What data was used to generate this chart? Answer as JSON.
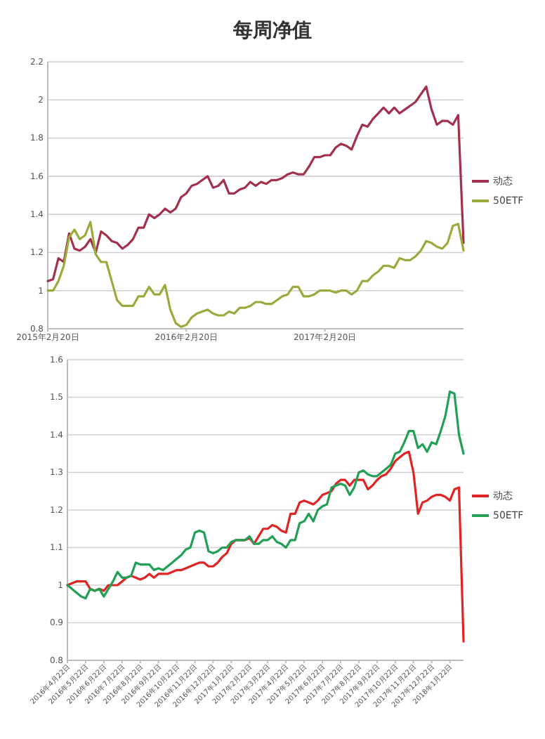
{
  "chart_data": [
    {
      "type": "line",
      "title": "每周净值",
      "categories": [
        "2015年2月20日",
        null,
        null,
        null,
        null,
        null,
        null,
        null,
        null,
        null,
        null,
        null,
        null,
        null,
        null,
        null,
        null,
        null,
        null,
        null,
        null,
        null,
        null,
        null,
        null,
        null,
        "2016年2月20日",
        null,
        null,
        null,
        null,
        null,
        null,
        null,
        null,
        null,
        null,
        null,
        null,
        null,
        null,
        null,
        null,
        null,
        null,
        null,
        null,
        null,
        null,
        null,
        null,
        null,
        "2017年2月20日",
        null,
        null,
        null,
        null,
        null,
        null,
        null,
        null,
        null,
        null,
        null,
        null,
        null,
        null,
        null,
        null,
        null,
        null,
        null,
        null,
        null,
        null,
        null,
        null,
        null,
        null
      ],
      "series": [
        {
          "name": "动态",
          "color": "#a3304c",
          "values": [
            1.05,
            1.06,
            1.17,
            1.15,
            1.3,
            1.22,
            1.21,
            1.23,
            1.27,
            1.2,
            1.31,
            1.29,
            1.26,
            1.25,
            1.22,
            1.24,
            1.27,
            1.33,
            1.33,
            1.4,
            1.38,
            1.4,
            1.43,
            1.41,
            1.43,
            1.49,
            1.51,
            1.55,
            1.56,
            1.58,
            1.6,
            1.54,
            1.55,
            1.58,
            1.51,
            1.51,
            1.53,
            1.54,
            1.57,
            1.55,
            1.57,
            1.56,
            1.58,
            1.58,
            1.59,
            1.61,
            1.62,
            1.61,
            1.61,
            1.65,
            1.7,
            1.7,
            1.71,
            1.71,
            1.75,
            1.77,
            1.76,
            1.74,
            1.81,
            1.87,
            1.86,
            1.9,
            1.93,
            1.96,
            1.93,
            1.96,
            1.93,
            1.95,
            1.97,
            1.99,
            2.03,
            2.07,
            1.95,
            1.87,
            1.89,
            1.89,
            1.87,
            1.92,
            1.25
          ]
        },
        {
          "name": "50ETF",
          "color": "#9aab3e",
          "values": [
            1.0,
            1.0,
            1.05,
            1.13,
            1.28,
            1.32,
            1.27,
            1.29,
            1.36,
            1.19,
            1.15,
            1.15,
            1.05,
            0.95,
            0.92,
            0.92,
            0.92,
            0.97,
            0.97,
            1.02,
            0.98,
            0.98,
            1.03,
            0.9,
            0.83,
            0.81,
            0.82,
            0.86,
            0.88,
            0.89,
            0.9,
            0.88,
            0.87,
            0.87,
            0.89,
            0.88,
            0.91,
            0.91,
            0.92,
            0.94,
            0.94,
            0.93,
            0.93,
            0.95,
            0.97,
            0.98,
            1.02,
            1.02,
            0.97,
            0.97,
            0.98,
            1.0,
            1.0,
            1.0,
            0.99,
            1.0,
            1.0,
            0.98,
            1.0,
            1.05,
            1.05,
            1.08,
            1.1,
            1.13,
            1.13,
            1.12,
            1.17,
            1.16,
            1.16,
            1.18,
            1.21,
            1.26,
            1.25,
            1.23,
            1.22,
            1.25,
            1.34,
            1.35,
            1.21
          ]
        }
      ],
      "ylim": [
        0.8,
        2.2
      ],
      "yticks": [
        0.8,
        1,
        1.2,
        1.4,
        1.6,
        1.8,
        2,
        2.2
      ],
      "grid": "y",
      "legend": "right"
    },
    {
      "type": "line",
      "categories": [
        "2016年4月22日",
        null,
        null,
        null,
        "2016年5月22日",
        null,
        null,
        null,
        "2016年6月22日",
        null,
        null,
        null,
        "2016年7月22日",
        null,
        null,
        null,
        "2016年8月22日",
        null,
        null,
        null,
        "2016年9月22日",
        null,
        null,
        null,
        "2016年10月22日",
        null,
        null,
        null,
        "2016年11月22日",
        null,
        null,
        null,
        "2016年12月22日",
        null,
        null,
        null,
        "2017年1月22日",
        null,
        null,
        null,
        "2017年2月22日",
        null,
        null,
        null,
        "2017年3月22日",
        null,
        null,
        null,
        "2017年4月22日",
        null,
        null,
        null,
        "2017年5月22日",
        null,
        null,
        null,
        "2017年6月22日",
        null,
        null,
        null,
        "2017年7月22日",
        null,
        null,
        null,
        "2017年8月22日",
        null,
        null,
        null,
        "2017年9月22日",
        null,
        null,
        null,
        "2017年10月22日",
        null,
        null,
        null,
        "2017年11月22日",
        null,
        null,
        null,
        "2017年12月22日",
        null,
        null,
        null,
        "2018年1月22日",
        null,
        null,
        null
      ],
      "series": [
        {
          "name": "动态",
          "color": "#e02424",
          "values": [
            1.0,
            1.005,
            1.01,
            1.01,
            1.01,
            0.99,
            0.985,
            0.99,
            0.985,
            1.0,
            1.0,
            1.0,
            1.01,
            1.02,
            1.025,
            1.02,
            1.015,
            1.02,
            1.03,
            1.02,
            1.03,
            1.03,
            1.03,
            1.035,
            1.04,
            1.04,
            1.045,
            1.05,
            1.055,
            1.06,
            1.06,
            1.05,
            1.05,
            1.06,
            1.075,
            1.085,
            1.11,
            1.12,
            1.12,
            1.12,
            1.125,
            1.11,
            1.13,
            1.15,
            1.15,
            1.16,
            1.155,
            1.145,
            1.14,
            1.19,
            1.19,
            1.22,
            1.225,
            1.22,
            1.215,
            1.225,
            1.24,
            1.245,
            1.25,
            1.27,
            1.28,
            1.28,
            1.265,
            1.28,
            1.28,
            1.28,
            1.255,
            1.265,
            1.28,
            1.29,
            1.295,
            1.31,
            1.33,
            1.34,
            1.35,
            1.355,
            1.3,
            1.19,
            1.22,
            1.225,
            1.235,
            1.24,
            1.24,
            1.235,
            1.225,
            1.255,
            1.26,
            0.85
          ]
        },
        {
          "name": "50ETF",
          "color": "#22a055",
          "values": [
            1.0,
            0.99,
            0.98,
            0.97,
            0.965,
            0.99,
            0.985,
            0.99,
            0.97,
            0.99,
            1.01,
            1.035,
            1.02,
            1.02,
            1.025,
            1.06,
            1.055,
            1.055,
            1.055,
            1.04,
            1.045,
            1.04,
            1.05,
            1.06,
            1.07,
            1.08,
            1.095,
            1.1,
            1.14,
            1.145,
            1.14,
            1.09,
            1.085,
            1.09,
            1.1,
            1.1,
            1.115,
            1.12,
            1.12,
            1.12,
            1.13,
            1.11,
            1.11,
            1.12,
            1.12,
            1.13,
            1.115,
            1.11,
            1.1,
            1.12,
            1.12,
            1.165,
            1.17,
            1.19,
            1.17,
            1.2,
            1.21,
            1.215,
            1.26,
            1.265,
            1.27,
            1.265,
            1.24,
            1.26,
            1.3,
            1.305,
            1.295,
            1.29,
            1.29,
            1.3,
            1.31,
            1.32,
            1.35,
            1.355,
            1.38,
            1.41,
            1.41,
            1.365,
            1.375,
            1.355,
            1.38,
            1.375,
            1.41,
            1.45,
            1.515,
            1.51,
            1.4,
            1.35
          ]
        }
      ],
      "ylim": [
        0.8,
        1.6
      ],
      "yticks": [
        0.8,
        0.9,
        1,
        1.1,
        1.2,
        1.3,
        1.4,
        1.5,
        1.6
      ],
      "grid": "y",
      "legend": "right"
    }
  ]
}
